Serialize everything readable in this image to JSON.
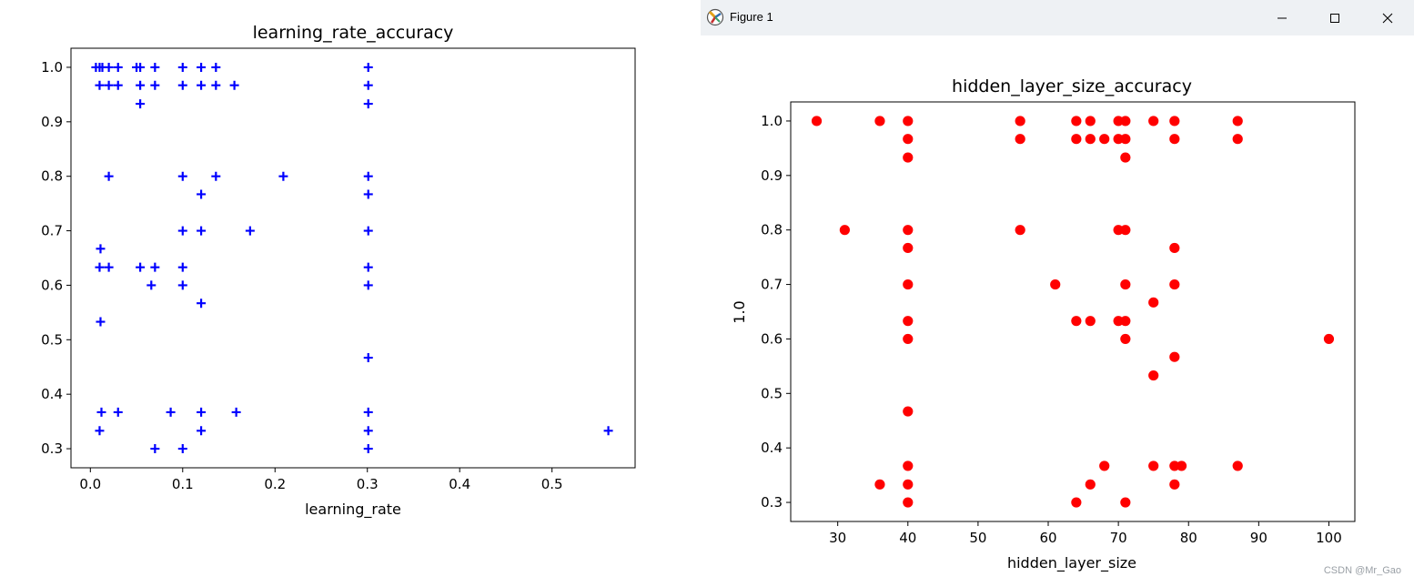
{
  "window": {
    "title": "Figure 1",
    "icons": {
      "app": "matplotlib-figure-icon",
      "minimize": "minimize-icon",
      "maximize": "maximize-icon",
      "close": "close-icon"
    }
  },
  "watermark": "CSDN @Mr_Gao",
  "chart_data": [
    {
      "type": "scatter",
      "title": "learning_rate_accuracy",
      "xlabel": "learning_rate",
      "ylabel": "",
      "marker": "+",
      "color": "#0000ff",
      "xlim": [
        -0.021,
        0.59
      ],
      "ylim": [
        0.265,
        1.035
      ],
      "xticks": [
        0.0,
        0.1,
        0.2,
        0.3,
        0.4,
        0.5
      ],
      "xtick_labels": [
        "0.0",
        "0.1",
        "0.2",
        "0.3",
        "0.4",
        "0.5"
      ],
      "yticks": [
        0.3,
        0.4,
        0.5,
        0.6,
        0.7,
        0.8,
        0.9,
        1.0
      ],
      "ytick_labels": [
        "0.3",
        "0.4",
        "0.5",
        "0.6",
        "0.7",
        "0.8",
        "0.9",
        "1.0"
      ],
      "x": [
        0.006,
        0.01,
        0.013,
        0.02,
        0.03,
        0.05,
        0.054,
        0.07,
        0.1,
        0.12,
        0.136,
        0.301,
        0.01,
        0.02,
        0.03,
        0.054,
        0.07,
        0.1,
        0.12,
        0.136,
        0.156,
        0.301,
        0.054,
        0.301,
        0.02,
        0.1,
        0.136,
        0.209,
        0.301,
        0.12,
        0.301,
        0.1,
        0.12,
        0.173,
        0.301,
        0.011,
        0.01,
        0.02,
        0.054,
        0.07,
        0.1,
        0.301,
        0.066,
        0.1,
        0.301,
        0.12,
        0.011,
        0.301,
        0.012,
        0.03,
        0.087,
        0.12,
        0.158,
        0.301,
        0.01,
        0.12,
        0.301,
        0.561,
        0.07,
        0.1,
        0.301
      ],
      "y": [
        1.0,
        1.0,
        1.0,
        1.0,
        1.0,
        1.0,
        1.0,
        1.0,
        1.0,
        1.0,
        1.0,
        1.0,
        0.967,
        0.967,
        0.967,
        0.967,
        0.967,
        0.967,
        0.967,
        0.967,
        0.967,
        0.967,
        0.933,
        0.933,
        0.8,
        0.8,
        0.8,
        0.8,
        0.8,
        0.767,
        0.767,
        0.7,
        0.7,
        0.7,
        0.7,
        0.667,
        0.633,
        0.633,
        0.633,
        0.633,
        0.633,
        0.633,
        0.6,
        0.6,
        0.6,
        0.567,
        0.533,
        0.467,
        0.367,
        0.367,
        0.367,
        0.367,
        0.367,
        0.367,
        0.333,
        0.333,
        0.333,
        0.333,
        0.3,
        0.3,
        0.3
      ]
    },
    {
      "type": "scatter",
      "title": "hidden_layer_size_accuracy",
      "xlabel": "hidden_layer_size",
      "ylabel": "1.0",
      "marker": "o",
      "color": "#ff0000",
      "xlim": [
        23.3,
        103.7
      ],
      "ylim": [
        0.265,
        1.035
      ],
      "xticks": [
        30,
        40,
        50,
        60,
        70,
        80,
        90,
        100
      ],
      "xtick_labels": [
        "30",
        "40",
        "50",
        "60",
        "70",
        "80",
        "90",
        "100"
      ],
      "yticks": [
        0.3,
        0.4,
        0.5,
        0.6,
        0.7,
        0.8,
        0.9,
        1.0
      ],
      "ytick_labels": [
        "0.3",
        "0.4",
        "0.5",
        "0.6",
        "0.7",
        "0.8",
        "0.9",
        "1.0"
      ],
      "x": [
        27,
        36,
        40,
        56,
        64,
        66,
        70,
        71,
        75,
        78,
        87,
        40,
        56,
        64,
        66,
        68,
        70,
        71,
        78,
        87,
        40,
        71,
        31,
        40,
        56,
        70,
        71,
        40,
        78,
        40,
        61,
        71,
        78,
        75,
        40,
        64,
        66,
        70,
        71,
        40,
        71,
        100,
        78,
        75,
        40,
        40,
        68,
        75,
        78,
        79,
        87,
        36,
        40,
        66,
        78,
        40,
        64,
        71
      ],
      "y": [
        1.0,
        1.0,
        1.0,
        1.0,
        1.0,
        1.0,
        1.0,
        1.0,
        1.0,
        1.0,
        1.0,
        0.967,
        0.967,
        0.967,
        0.967,
        0.967,
        0.967,
        0.967,
        0.967,
        0.967,
        0.933,
        0.933,
        0.8,
        0.8,
        0.8,
        0.8,
        0.8,
        0.767,
        0.767,
        0.7,
        0.7,
        0.7,
        0.7,
        0.667,
        0.633,
        0.633,
        0.633,
        0.633,
        0.633,
        0.6,
        0.6,
        0.6,
        0.567,
        0.533,
        0.467,
        0.367,
        0.367,
        0.367,
        0.367,
        0.367,
        0.367,
        0.333,
        0.333,
        0.333,
        0.333,
        0.3,
        0.3,
        0.3
      ]
    }
  ]
}
